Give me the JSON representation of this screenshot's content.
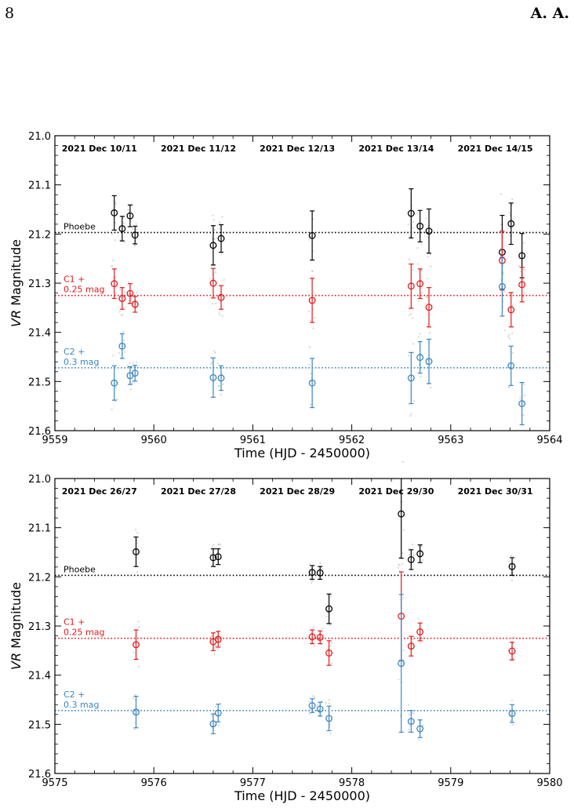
{
  "header": {
    "page_number": "8",
    "author": "A. A."
  },
  "colors": {
    "phoebe": "#000000",
    "c1": "#e41a1c",
    "c2": "#3a87c0",
    "raw": "#c8c8c8"
  },
  "chart_data": [
    {
      "type": "scatter",
      "xlabel": "Time (HJD - 2450000)",
      "ylabel_italic": "VR",
      "ylabel_rest": " Magnitude",
      "xlim": [
        9559,
        9564
      ],
      "ylim": [
        21.0,
        21.6
      ],
      "y_inverted": true,
      "xticks": [
        "9559",
        "9560",
        "9561",
        "9562",
        "9563",
        "9564"
      ],
      "yticks": [
        "21.0",
        "21.1",
        "21.2",
        "21.3",
        "21.4",
        "21.5",
        "21.6"
      ],
      "date_labels": [
        {
          "text": "2021 Dec 10/11",
          "x": 9559.45
        },
        {
          "text": "2021 Dec 11/12",
          "x": 9560.45
        },
        {
          "text": "2021 Dec 12/13",
          "x": 9561.45
        },
        {
          "text": "2021 Dec 13/14",
          "x": 9562.45
        },
        {
          "text": "2021 Dec 14/15",
          "x": 9563.45
        }
      ],
      "reference_lines": [
        {
          "label": "Phoebe",
          "series": "phoebe",
          "y": 21.197
        },
        {
          "label": "C1 +|0.25 mag",
          "series": "c1",
          "y": 21.325
        },
        {
          "label": "C2 +|0.3 mag",
          "series": "c2",
          "y": 21.472
        }
      ],
      "series": [
        {
          "name": "Phoebe",
          "key": "phoebe",
          "points": [
            {
              "x": 9559.6,
              "y": 21.157,
              "err": 0.035
            },
            {
              "x": 9559.68,
              "y": 21.189,
              "err": 0.025
            },
            {
              "x": 9559.76,
              "y": 21.163,
              "err": 0.022
            },
            {
              "x": 9559.81,
              "y": 21.202,
              "err": 0.018
            },
            {
              "x": 9560.6,
              "y": 21.223,
              "err": 0.04
            },
            {
              "x": 9560.68,
              "y": 21.209,
              "err": 0.028
            },
            {
              "x": 9561.6,
              "y": 21.203,
              "err": 0.05
            },
            {
              "x": 9562.6,
              "y": 21.158,
              "err": 0.05
            },
            {
              "x": 9562.69,
              "y": 21.184,
              "err": 0.032
            },
            {
              "x": 9562.78,
              "y": 21.194,
              "err": 0.045
            },
            {
              "x": 9563.52,
              "y": 21.237,
              "err": 0.075
            },
            {
              "x": 9563.61,
              "y": 21.179,
              "err": 0.042
            },
            {
              "x": 9563.72,
              "y": 21.244,
              "err": 0.045
            }
          ]
        },
        {
          "name": "C1 + 0.25 mag",
          "key": "c1",
          "points": [
            {
              "x": 9559.6,
              "y": 21.301,
              "err": 0.03
            },
            {
              "x": 9559.68,
              "y": 21.331,
              "err": 0.022
            },
            {
              "x": 9559.76,
              "y": 21.321,
              "err": 0.02
            },
            {
              "x": 9559.81,
              "y": 21.343,
              "err": 0.016
            },
            {
              "x": 9560.6,
              "y": 21.3,
              "err": 0.03
            },
            {
              "x": 9560.68,
              "y": 21.329,
              "err": 0.024
            },
            {
              "x": 9561.6,
              "y": 21.335,
              "err": 0.045
            },
            {
              "x": 9562.6,
              "y": 21.306,
              "err": 0.045
            },
            {
              "x": 9562.69,
              "y": 21.301,
              "err": 0.03
            },
            {
              "x": 9562.78,
              "y": 21.349,
              "err": 0.04
            },
            {
              "x": 9563.52,
              "y": 21.254,
              "err": 0.06
            },
            {
              "x": 9563.61,
              "y": 21.354,
              "err": 0.035
            },
            {
              "x": 9563.72,
              "y": 21.303,
              "err": 0.035
            }
          ]
        },
        {
          "name": "C2 + 0.3 mag",
          "key": "c2",
          "points": [
            {
              "x": 9559.6,
              "y": 21.503,
              "err": 0.035
            },
            {
              "x": 9559.68,
              "y": 21.428,
              "err": 0.025
            },
            {
              "x": 9559.76,
              "y": 21.488,
              "err": 0.018
            },
            {
              "x": 9559.81,
              "y": 21.483,
              "err": 0.016
            },
            {
              "x": 9560.6,
              "y": 21.492,
              "err": 0.04
            },
            {
              "x": 9560.68,
              "y": 21.493,
              "err": 0.025
            },
            {
              "x": 9561.6,
              "y": 21.503,
              "err": 0.05
            },
            {
              "x": 9562.6,
              "y": 21.493,
              "err": 0.052
            },
            {
              "x": 9562.69,
              "y": 21.451,
              "err": 0.032
            },
            {
              "x": 9562.78,
              "y": 21.459,
              "err": 0.045
            },
            {
              "x": 9563.52,
              "y": 21.307,
              "err": 0.06
            },
            {
              "x": 9563.61,
              "y": 21.468,
              "err": 0.04
            },
            {
              "x": 9563.72,
              "y": 21.545,
              "err": 0.043
            }
          ]
        }
      ]
    },
    {
      "type": "scatter",
      "xlabel": "Time (HJD - 2450000)",
      "ylabel_italic": "VR",
      "ylabel_rest": " Magnitude",
      "xlim": [
        9575,
        9580
      ],
      "ylim": [
        21.0,
        21.6
      ],
      "y_inverted": true,
      "xticks": [
        "9575",
        "9576",
        "9577",
        "9578",
        "9579",
        "9580"
      ],
      "yticks": [
        "21.0",
        "21.1",
        "21.2",
        "21.3",
        "21.4",
        "21.5",
        "21.6"
      ],
      "date_labels": [
        {
          "text": "2021 Dec 26/27",
          "x": 9575.45
        },
        {
          "text": "2021 Dec 27/28",
          "x": 9576.45
        },
        {
          "text": "2021 Dec 28/29",
          "x": 9577.45
        },
        {
          "text": "2021 Dec 29/30",
          "x": 9578.45
        },
        {
          "text": "2021 Dec 30/31",
          "x": 9579.45
        }
      ],
      "reference_lines": [
        {
          "label": "Phoebe",
          "series": "phoebe",
          "y": 21.197
        },
        {
          "label": "C1 +|0.25 mag",
          "series": "c1",
          "y": 21.325
        },
        {
          "label": "C2 +|0.3 mag",
          "series": "c2",
          "y": 21.472
        }
      ],
      "series": [
        {
          "name": "Phoebe",
          "key": "phoebe",
          "points": [
            {
              "x": 9575.82,
              "y": 21.149,
              "err": 0.03
            },
            {
              "x": 9576.6,
              "y": 21.161,
              "err": 0.018
            },
            {
              "x": 9576.65,
              "y": 21.159,
              "err": 0.016
            },
            {
              "x": 9577.6,
              "y": 21.191,
              "err": 0.014
            },
            {
              "x": 9577.68,
              "y": 21.192,
              "err": 0.013
            },
            {
              "x": 9577.77,
              "y": 21.265,
              "err": 0.03
            },
            {
              "x": 9578.5,
              "y": 21.072,
              "err": 0.09
            },
            {
              "x": 9578.6,
              "y": 21.165,
              "err": 0.02
            },
            {
              "x": 9578.69,
              "y": 21.153,
              "err": 0.018
            },
            {
              "x": 9579.62,
              "y": 21.179,
              "err": 0.018
            }
          ]
        },
        {
          "name": "C1 + 0.25 mag",
          "key": "c1",
          "points": [
            {
              "x": 9575.82,
              "y": 21.338,
              "err": 0.03
            },
            {
              "x": 9576.6,
              "y": 21.332,
              "err": 0.018
            },
            {
              "x": 9576.65,
              "y": 21.327,
              "err": 0.016
            },
            {
              "x": 9577.6,
              "y": 21.322,
              "err": 0.014
            },
            {
              "x": 9577.68,
              "y": 21.323,
              "err": 0.013
            },
            {
              "x": 9577.77,
              "y": 21.355,
              "err": 0.025
            },
            {
              "x": 9578.5,
              "y": 21.28,
              "err": 0.09
            },
            {
              "x": 9578.6,
              "y": 21.341,
              "err": 0.02
            },
            {
              "x": 9578.69,
              "y": 21.312,
              "err": 0.018
            },
            {
              "x": 9579.62,
              "y": 21.351,
              "err": 0.018
            }
          ]
        },
        {
          "name": "C2 + 0.3 mag",
          "key": "c2",
          "points": [
            {
              "x": 9575.82,
              "y": 21.475,
              "err": 0.032
            },
            {
              "x": 9576.6,
              "y": 21.499,
              "err": 0.02
            },
            {
              "x": 9576.65,
              "y": 21.477,
              "err": 0.018
            },
            {
              "x": 9577.6,
              "y": 21.462,
              "err": 0.014
            },
            {
              "x": 9577.68,
              "y": 21.469,
              "err": 0.014
            },
            {
              "x": 9577.77,
              "y": 21.488,
              "err": 0.025
            },
            {
              "x": 9578.5,
              "y": 21.376,
              "err": 0.14
            },
            {
              "x": 9578.6,
              "y": 21.494,
              "err": 0.022
            },
            {
              "x": 9578.69,
              "y": 21.509,
              "err": 0.018
            },
            {
              "x": 9579.62,
              "y": 21.478,
              "err": 0.018
            }
          ]
        }
      ]
    }
  ]
}
